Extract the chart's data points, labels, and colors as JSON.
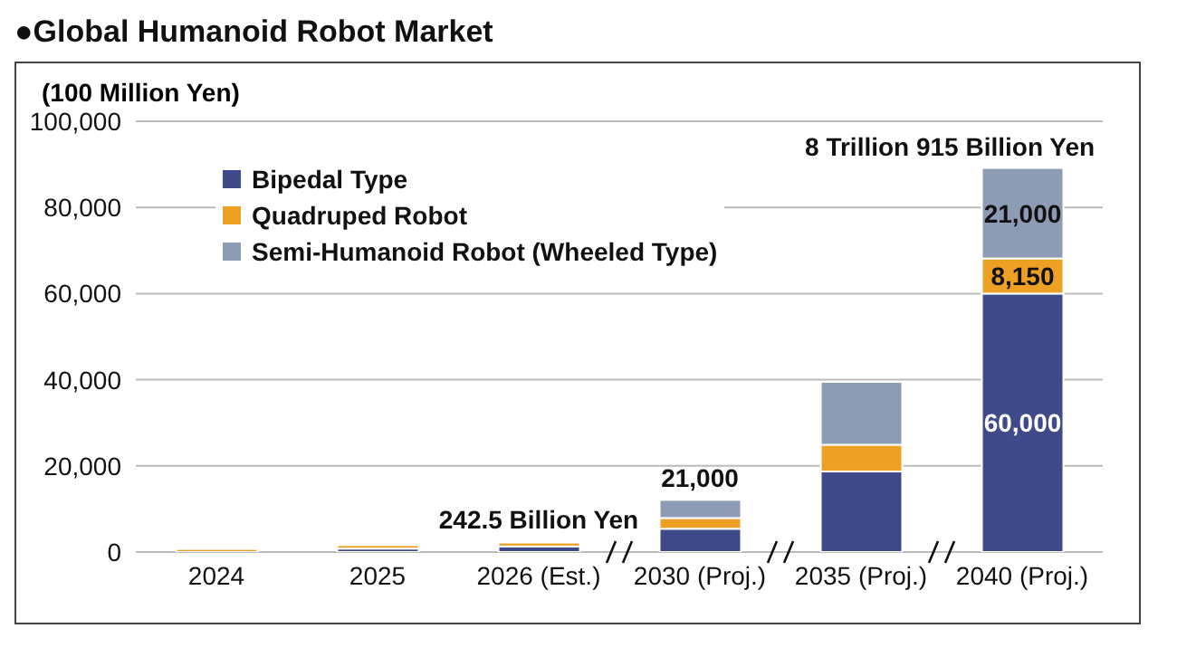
{
  "chart_data": {
    "type": "bar",
    "title": "●Global Humanoid Robot Market",
    "ylabel": "(100 Million Yen)",
    "categories": [
      "2024",
      "2025",
      "2026 (Est.)",
      "2030 (Proj.)",
      "2035 (Proj.)",
      "2040 (Proj.)"
    ],
    "stacked": true,
    "series": [
      {
        "name": "Bipedal Type",
        "color": "#3f4a8a",
        "values": [
          null,
          800,
          1300,
          5400,
          18700,
          60000
        ],
        "value_labels": [
          null,
          null,
          null,
          null,
          null,
          "60,000"
        ]
      },
      {
        "name": "Quadruped Robot",
        "color": "#eea024",
        "values": [
          700,
          800,
          900,
          2500,
          6200,
          8150
        ],
        "value_labels": [
          null,
          null,
          null,
          null,
          null,
          "8,150"
        ]
      },
      {
        "name": "Semi-Humanoid Robot (Wheeled Type)",
        "color": "#8e9bb5",
        "values": [
          null,
          null,
          null,
          4200,
          14600,
          21000
        ],
        "value_labels": [
          null,
          null,
          null,
          null,
          null,
          "21,000"
        ]
      }
    ],
    "ylim": [
      0,
      100000
    ],
    "yticks": [
      {
        "value": 0,
        "label": "0"
      },
      {
        "value": 20000,
        "label": "20,000"
      },
      {
        "value": 40000,
        "label": "40,000"
      },
      {
        "value": 60000,
        "label": "60,000"
      },
      {
        "value": 80000,
        "label": "80,000"
      },
      {
        "value": 100000,
        "label": "100,000"
      }
    ],
    "grid": "y",
    "legend": "top left",
    "annotations": [
      {
        "text": "242.5 Billion Yen",
        "x": "2026 (Est.)",
        "y": 2425
      },
      {
        "text": "21,000",
        "x": "2030 (Proj.)",
        "y": 12100
      },
      {
        "text": "8 Trillion 915 Billion Yen",
        "x": "2040 (Proj.)",
        "y": 89150
      }
    ]
  }
}
